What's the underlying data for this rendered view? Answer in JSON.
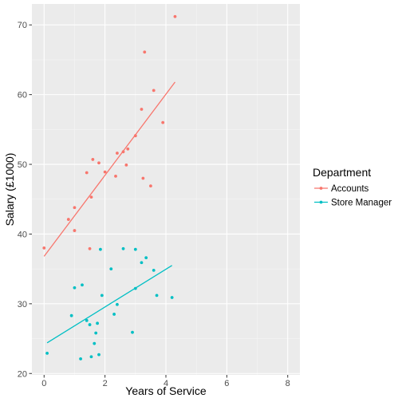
{
  "chart_data": {
    "type": "scatter",
    "xlabel": "Years of Service",
    "ylabel": "Salary (£1000)",
    "xlim": [
      -0.4,
      8.4
    ],
    "ylim": [
      19.8,
      73.0
    ],
    "x_ticks": [
      0,
      2,
      4,
      6,
      8
    ],
    "y_ticks": [
      20,
      30,
      40,
      50,
      60,
      70
    ],
    "grid": true,
    "legend": {
      "title": "Department",
      "placement": "right"
    },
    "series": [
      {
        "name": "Accounts",
        "color": "#f8766d",
        "points": [
          {
            "x": 0.0,
            "y": 38.0
          },
          {
            "x": 0.8,
            "y": 42.1
          },
          {
            "x": 1.0,
            "y": 40.5
          },
          {
            "x": 1.0,
            "y": 43.8
          },
          {
            "x": 1.4,
            "y": 48.8
          },
          {
            "x": 1.5,
            "y": 37.9
          },
          {
            "x": 1.55,
            "y": 45.3
          },
          {
            "x": 1.6,
            "y": 50.7
          },
          {
            "x": 1.8,
            "y": 50.2
          },
          {
            "x": 2.0,
            "y": 48.9
          },
          {
            "x": 2.35,
            "y": 48.3
          },
          {
            "x": 2.4,
            "y": 51.6
          },
          {
            "x": 2.6,
            "y": 51.8
          },
          {
            "x": 2.7,
            "y": 49.9
          },
          {
            "x": 2.75,
            "y": 52.2
          },
          {
            "x": 3.0,
            "y": 54.1
          },
          {
            "x": 3.2,
            "y": 57.9
          },
          {
            "x": 3.25,
            "y": 48.0
          },
          {
            "x": 3.3,
            "y": 66.1
          },
          {
            "x": 3.5,
            "y": 46.9
          },
          {
            "x": 3.6,
            "y": 60.6
          },
          {
            "x": 3.9,
            "y": 56.0
          },
          {
            "x": 4.3,
            "y": 71.2
          }
        ],
        "trend": {
          "x": [
            0.0,
            4.3
          ],
          "y": [
            36.8,
            61.8
          ]
        }
      },
      {
        "name": "Store Manager",
        "color": "#00bfc4",
        "points": [
          {
            "x": 0.1,
            "y": 22.9
          },
          {
            "x": 0.9,
            "y": 28.3
          },
          {
            "x": 1.0,
            "y": 32.3
          },
          {
            "x": 1.2,
            "y": 22.1
          },
          {
            "x": 1.25,
            "y": 32.7
          },
          {
            "x": 1.4,
            "y": 27.6
          },
          {
            "x": 1.5,
            "y": 27.0
          },
          {
            "x": 1.55,
            "y": 22.4
          },
          {
            "x": 1.65,
            "y": 24.3
          },
          {
            "x": 1.7,
            "y": 25.8
          },
          {
            "x": 1.75,
            "y": 27.2
          },
          {
            "x": 1.8,
            "y": 22.7
          },
          {
            "x": 1.85,
            "y": 37.8
          },
          {
            "x": 1.9,
            "y": 31.2
          },
          {
            "x": 2.2,
            "y": 35.0
          },
          {
            "x": 2.3,
            "y": 28.5
          },
          {
            "x": 2.4,
            "y": 29.9
          },
          {
            "x": 2.6,
            "y": 37.9
          },
          {
            "x": 2.9,
            "y": 25.9
          },
          {
            "x": 3.0,
            "y": 32.2
          },
          {
            "x": 3.0,
            "y": 37.8
          },
          {
            "x": 3.2,
            "y": 35.9
          },
          {
            "x": 3.35,
            "y": 36.6
          },
          {
            "x": 3.6,
            "y": 34.8
          },
          {
            "x": 3.7,
            "y": 31.2
          },
          {
            "x": 4.2,
            "y": 30.9
          }
        ],
        "trend": {
          "x": [
            0.1,
            4.2
          ],
          "y": [
            24.4,
            35.5
          ]
        }
      }
    ]
  }
}
